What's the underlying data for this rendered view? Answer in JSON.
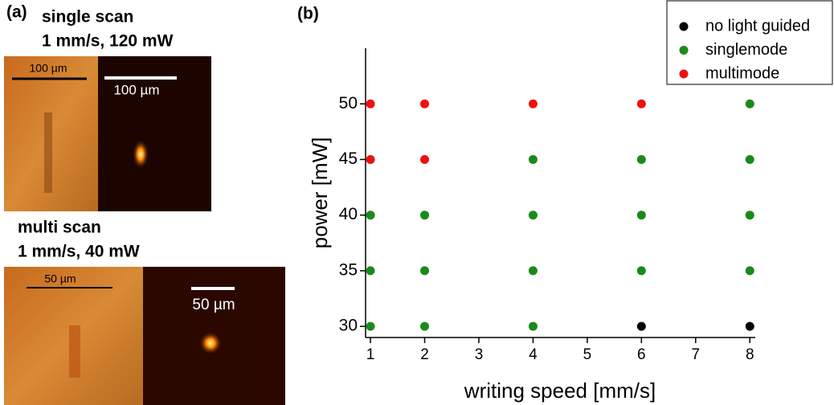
{
  "panel_a": {
    "label": "(a)",
    "single_title": "single scan",
    "single_params": "1 mm/s, 120 mW",
    "single_scale_left": "100 µm",
    "single_scale_right": "100 µm",
    "multi_title": "multi scan",
    "multi_params": "1 mm/s, 40 mW",
    "multi_scale_left": "50 µm",
    "multi_scale_right": "50 µm"
  },
  "chart_data": {
    "type": "scatter",
    "panel_label": "(b)",
    "x_label": "writing speed [mm/s]",
    "y_label": "power [mW]",
    "xlim": [
      0.91,
      8.1
    ],
    "xticks": [
      1,
      2,
      3,
      4,
      5,
      6,
      7,
      8
    ],
    "ylim": [
      29,
      55
    ],
    "yticks": [
      30,
      35,
      40,
      45,
      50
    ],
    "legend": "top-right",
    "series": [
      {
        "name": "no light guided",
        "color": "#000000",
        "x": [
          6,
          8
        ],
        "values": [
          30,
          30
        ]
      },
      {
        "name": "singlemode",
        "color": "#1a8a1a",
        "x": [
          8,
          4,
          6,
          8,
          1,
          2,
          4,
          6,
          8,
          1,
          2,
          4,
          6,
          8,
          1,
          2,
          4
        ],
        "values": [
          50,
          45,
          45,
          45,
          40,
          40,
          40,
          40,
          40,
          35,
          35,
          35,
          35,
          35,
          30,
          30,
          30
        ]
      },
      {
        "name": "multimode",
        "color": "#ee1111",
        "x": [
          1,
          2,
          4,
          6,
          1,
          2
        ],
        "values": [
          50,
          50,
          50,
          50,
          45,
          45
        ]
      }
    ]
  }
}
